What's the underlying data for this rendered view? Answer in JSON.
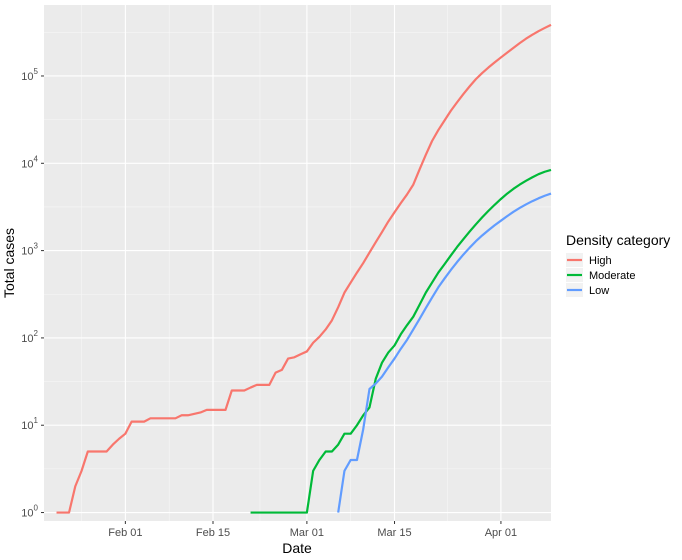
{
  "chart_data": {
    "type": "line",
    "xlabel": "Date",
    "ylabel": "Total cases",
    "x_scale": "date",
    "y_scale": "log10",
    "xlim": [
      "2020-01-19",
      "2020-04-09"
    ],
    "ylim": [
      0.8,
      650000
    ],
    "x_ticks": [
      {
        "date": "2020-02-01",
        "label": "Feb 01"
      },
      {
        "date": "2020-02-15",
        "label": "Feb 15"
      },
      {
        "date": "2020-03-01",
        "label": "Mar 01"
      },
      {
        "date": "2020-03-15",
        "label": "Mar 15"
      },
      {
        "date": "2020-04-01",
        "label": "Apr 01"
      }
    ],
    "y_ticks": [
      {
        "value": 1,
        "base": "10",
        "exp": "0"
      },
      {
        "value": 10,
        "base": "10",
        "exp": "1"
      },
      {
        "value": 100,
        "base": "10",
        "exp": "2"
      },
      {
        "value": 1000,
        "base": "10",
        "exp": "3"
      },
      {
        "value": 10000,
        "base": "10",
        "exp": "4"
      },
      {
        "value": 100000,
        "base": "10",
        "exp": "5"
      }
    ],
    "grid": true,
    "background": "#ebebeb",
    "legend_title": "Density category",
    "legend_position": "right",
    "series": [
      {
        "name": "High",
        "color": "#f8766d",
        "points": [
          [
            "2020-01-21",
            1
          ],
          [
            "2020-01-23",
            1
          ],
          [
            "2020-01-24",
            2
          ],
          [
            "2020-01-25",
            3
          ],
          [
            "2020-01-26",
            5
          ],
          [
            "2020-01-29",
            5
          ],
          [
            "2020-01-30",
            6
          ],
          [
            "2020-01-31",
            7
          ],
          [
            "2020-02-01",
            8
          ],
          [
            "2020-02-02",
            11
          ],
          [
            "2020-02-04",
            11
          ],
          [
            "2020-02-05",
            12
          ],
          [
            "2020-02-07",
            12
          ],
          [
            "2020-02-09",
            12
          ],
          [
            "2020-02-10",
            13
          ],
          [
            "2020-02-11",
            13
          ],
          [
            "2020-02-13",
            14
          ],
          [
            "2020-02-14",
            15
          ],
          [
            "2020-02-17",
            15
          ],
          [
            "2020-02-18",
            25
          ],
          [
            "2020-02-20",
            25
          ],
          [
            "2020-02-21",
            27
          ],
          [
            "2020-02-22",
            29
          ],
          [
            "2020-02-24",
            29
          ],
          [
            "2020-02-25",
            40
          ],
          [
            "2020-02-26",
            43
          ],
          [
            "2020-02-27",
            58
          ],
          [
            "2020-02-28",
            60
          ],
          [
            "2020-02-29",
            65
          ],
          [
            "2020-03-01",
            70
          ],
          [
            "2020-03-02",
            88
          ],
          [
            "2020-03-03",
            103
          ],
          [
            "2020-03-04",
            125
          ],
          [
            "2020-03-05",
            159
          ],
          [
            "2020-03-06",
            225
          ],
          [
            "2020-03-07",
            330
          ],
          [
            "2020-03-08",
            430
          ],
          [
            "2020-03-09",
            560
          ],
          [
            "2020-03-10",
            720
          ],
          [
            "2020-03-11",
            950
          ],
          [
            "2020-03-12",
            1250
          ],
          [
            "2020-03-13",
            1630
          ],
          [
            "2020-03-14",
            2150
          ],
          [
            "2020-03-15",
            2750
          ],
          [
            "2020-03-16",
            3500
          ],
          [
            "2020-03-17",
            4400
          ],
          [
            "2020-03-18",
            5700
          ],
          [
            "2020-03-19",
            8500
          ],
          [
            "2020-03-20",
            12500
          ],
          [
            "2020-03-21",
            18000
          ],
          [
            "2020-03-22",
            24000
          ],
          [
            "2020-03-23",
            31000
          ],
          [
            "2020-03-24",
            40000
          ],
          [
            "2020-03-25",
            50000
          ],
          [
            "2020-03-26",
            62000
          ],
          [
            "2020-03-27",
            76000
          ],
          [
            "2020-03-28",
            92000
          ],
          [
            "2020-03-29",
            108000
          ],
          [
            "2020-03-30",
            125000
          ],
          [
            "2020-03-31",
            143000
          ],
          [
            "2020-04-01",
            163000
          ],
          [
            "2020-04-02",
            185000
          ],
          [
            "2020-04-03",
            210000
          ],
          [
            "2020-04-04",
            238000
          ],
          [
            "2020-04-05",
            267000
          ],
          [
            "2020-04-06",
            296000
          ],
          [
            "2020-04-07",
            326000
          ],
          [
            "2020-04-08",
            355000
          ],
          [
            "2020-04-09",
            385000
          ]
        ]
      },
      {
        "name": "Moderate",
        "color": "#00ba38",
        "points": [
          [
            "2020-02-21",
            1
          ],
          [
            "2020-03-01",
            1
          ],
          [
            "2020-03-02",
            3
          ],
          [
            "2020-03-03",
            4
          ],
          [
            "2020-03-04",
            5
          ],
          [
            "2020-03-05",
            5
          ],
          [
            "2020-03-06",
            6
          ],
          [
            "2020-03-07",
            8
          ],
          [
            "2020-03-08",
            8
          ],
          [
            "2020-03-09",
            10
          ],
          [
            "2020-03-10",
            13
          ],
          [
            "2020-03-11",
            16
          ],
          [
            "2020-03-12",
            34
          ],
          [
            "2020-03-13",
            52
          ],
          [
            "2020-03-14",
            68
          ],
          [
            "2020-03-15",
            82
          ],
          [
            "2020-03-16",
            110
          ],
          [
            "2020-03-17",
            140
          ],
          [
            "2020-03-18",
            175
          ],
          [
            "2020-03-19",
            240
          ],
          [
            "2020-03-20",
            330
          ],
          [
            "2020-03-21",
            430
          ],
          [
            "2020-03-22",
            560
          ],
          [
            "2020-03-23",
            700
          ],
          [
            "2020-03-24",
            880
          ],
          [
            "2020-03-25",
            1100
          ],
          [
            "2020-03-26",
            1350
          ],
          [
            "2020-03-27",
            1650
          ],
          [
            "2020-03-28",
            2000
          ],
          [
            "2020-03-29",
            2400
          ],
          [
            "2020-03-30",
            2850
          ],
          [
            "2020-03-31",
            3350
          ],
          [
            "2020-04-01",
            3900
          ],
          [
            "2020-04-02",
            4500
          ],
          [
            "2020-04-03",
            5100
          ],
          [
            "2020-04-04",
            5700
          ],
          [
            "2020-04-05",
            6300
          ],
          [
            "2020-04-06",
            6900
          ],
          [
            "2020-04-07",
            7500
          ],
          [
            "2020-04-08",
            8000
          ],
          [
            "2020-04-09",
            8400
          ]
        ]
      },
      {
        "name": "Low",
        "color": "#619cff",
        "points": [
          [
            "2020-03-06",
            1
          ],
          [
            "2020-03-07",
            3
          ],
          [
            "2020-03-08",
            4
          ],
          [
            "2020-03-09",
            4
          ],
          [
            "2020-03-10",
            9
          ],
          [
            "2020-03-11",
            26
          ],
          [
            "2020-03-12",
            30
          ],
          [
            "2020-03-13",
            36
          ],
          [
            "2020-03-14",
            46
          ],
          [
            "2020-03-15",
            58
          ],
          [
            "2020-03-16",
            75
          ],
          [
            "2020-03-17",
            95
          ],
          [
            "2020-03-18",
            125
          ],
          [
            "2020-03-19",
            165
          ],
          [
            "2020-03-20",
            220
          ],
          [
            "2020-03-21",
            290
          ],
          [
            "2020-03-22",
            380
          ],
          [
            "2020-03-23",
            480
          ],
          [
            "2020-03-24",
            600
          ],
          [
            "2020-03-25",
            740
          ],
          [
            "2020-03-26",
            900
          ],
          [
            "2020-03-27",
            1080
          ],
          [
            "2020-03-28",
            1280
          ],
          [
            "2020-03-29",
            1490
          ],
          [
            "2020-03-30",
            1710
          ],
          [
            "2020-03-31",
            1950
          ],
          [
            "2020-04-01",
            2200
          ],
          [
            "2020-04-02",
            2480
          ],
          [
            "2020-04-03",
            2780
          ],
          [
            "2020-04-04",
            3080
          ],
          [
            "2020-04-05",
            3380
          ],
          [
            "2020-04-06",
            3680
          ],
          [
            "2020-04-07",
            3970
          ],
          [
            "2020-04-08",
            4250
          ],
          [
            "2020-04-09",
            4500
          ]
        ]
      }
    ]
  }
}
